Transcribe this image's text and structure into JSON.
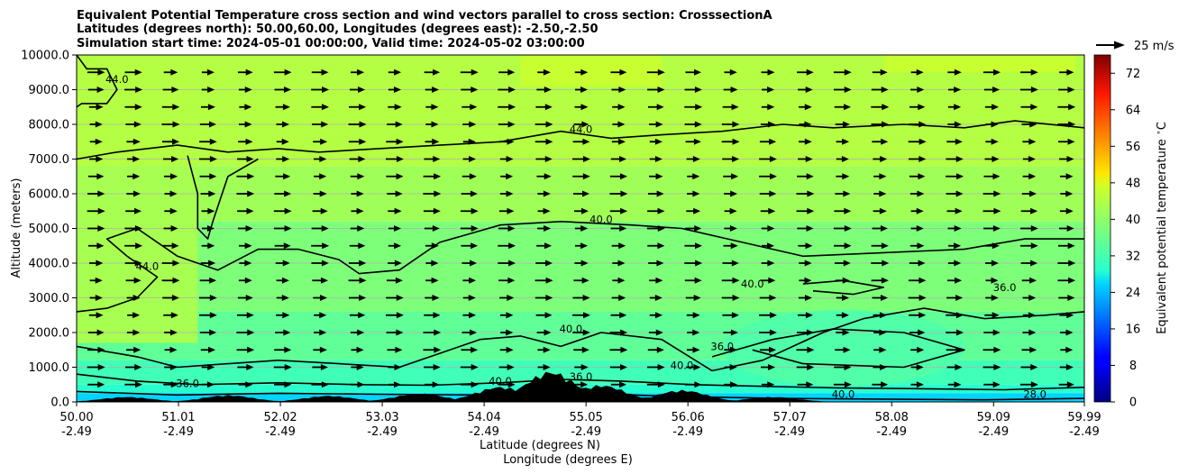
{
  "chart_data": {
    "type": "contour",
    "title_lines": [
      "Equivalent Potential Temperature cross section and wind vectors parallel to cross section: CrosssectionA",
      "Latitudes (degrees north): 50.00,60.00, Longitudes (degrees east): -2.50,-2.50",
      "Simulation start time: 2024-05-01 00:00:00, Valid time: 2024-05-02 03:00:00"
    ],
    "xlabel": "Latitude (degrees N)",
    "xlabel2": "Longitude (degrees E)",
    "ylabel": "Altitude (meters)",
    "xlim": [
      50.0,
      59.99
    ],
    "ylim": [
      0,
      10000
    ],
    "x_ticks": [
      {
        "lat": "50.00",
        "lon": "-2.49",
        "v": 50.0
      },
      {
        "lat": "51.01",
        "lon": "-2.49",
        "v": 51.01
      },
      {
        "lat": "52.02",
        "lon": "-2.49",
        "v": 52.02
      },
      {
        "lat": "53.03",
        "lon": "-2.49",
        "v": 53.03
      },
      {
        "lat": "54.04",
        "lon": "-2.49",
        "v": 54.04
      },
      {
        "lat": "55.05",
        "lon": "-2.49",
        "v": 55.05
      },
      {
        "lat": "56.06",
        "lon": "-2.49",
        "v": 56.06
      },
      {
        "lat": "57.07",
        "lon": "-2.49",
        "v": 57.07
      },
      {
        "lat": "58.08",
        "lon": "-2.49",
        "v": 58.08
      },
      {
        "lat": "59.09",
        "lon": "-2.49",
        "v": 59.09
      },
      {
        "lat": "59.99",
        "lon": "-2.49",
        "v": 59.99
      }
    ],
    "y_ticks": [
      {
        "label": "0.0",
        "v": 0
      },
      {
        "label": "1000.0",
        "v": 1000
      },
      {
        "label": "2000.0",
        "v": 2000
      },
      {
        "label": "3000.0",
        "v": 3000
      },
      {
        "label": "4000.0",
        "v": 4000
      },
      {
        "label": "5000.0",
        "v": 5000
      },
      {
        "label": "6000.0",
        "v": 6000
      },
      {
        "label": "7000.0",
        "v": 7000
      },
      {
        "label": "8000.0",
        "v": 8000
      },
      {
        "label": "9000.0",
        "v": 9000
      },
      {
        "label": "10000.0",
        "v": 10000
      }
    ],
    "grid": "horizontal",
    "colorbar": {
      "label": "Equivalent potential temperature $^\\circ$C",
      "range": [
        0,
        76
      ],
      "ticks": [
        "0",
        "8",
        "16",
        "24",
        "32",
        "40",
        "48",
        "56",
        "64",
        "72"
      ],
      "colormap": "jet"
    },
    "quiver_key": {
      "label": "25 m/s",
      "value": 25
    },
    "wind_vectors": {
      "direction": "toward increasing latitude",
      "typical_speed_ms": 22
    },
    "contour_labels": [
      {
        "text": "44.0",
        "x": 50.4,
        "y": 9200
      },
      {
        "text": "44.0",
        "x": 50.7,
        "y": 3800
      },
      {
        "text": "44.0",
        "x": 55.0,
        "y": 7750
      },
      {
        "text": "40.0",
        "x": 55.2,
        "y": 5150
      },
      {
        "text": "40.0",
        "x": 56.7,
        "y": 3300
      },
      {
        "text": "40.0",
        "x": 54.9,
        "y": 2000
      },
      {
        "text": "40.0",
        "x": 56.0,
        "y": 950
      },
      {
        "text": "36.0",
        "x": 56.4,
        "y": 1500
      },
      {
        "text": "36.0",
        "x": 59.2,
        "y": 3200
      },
      {
        "text": "36.0",
        "x": 51.1,
        "y": 430
      },
      {
        "text": "36.0",
        "x": 55.0,
        "y": 620
      },
      {
        "text": "28.0",
        "x": 59.5,
        "y": 120
      },
      {
        "text": "40.0",
        "x": 54.2,
        "y": 500
      },
      {
        "text": "40.0",
        "x": 57.6,
        "y": 120
      }
    ],
    "terrain_peaks": [
      {
        "x": 50.5,
        "h": 150
      },
      {
        "x": 51.5,
        "h": 200
      },
      {
        "x": 52.5,
        "h": 180
      },
      {
        "x": 53.4,
        "h": 250
      },
      {
        "x": 54.2,
        "h": 450
      },
      {
        "x": 54.7,
        "h": 900
      },
      {
        "x": 55.2,
        "h": 500
      },
      {
        "x": 56.0,
        "h": 350
      },
      {
        "x": 56.9,
        "h": 150
      }
    ]
  }
}
